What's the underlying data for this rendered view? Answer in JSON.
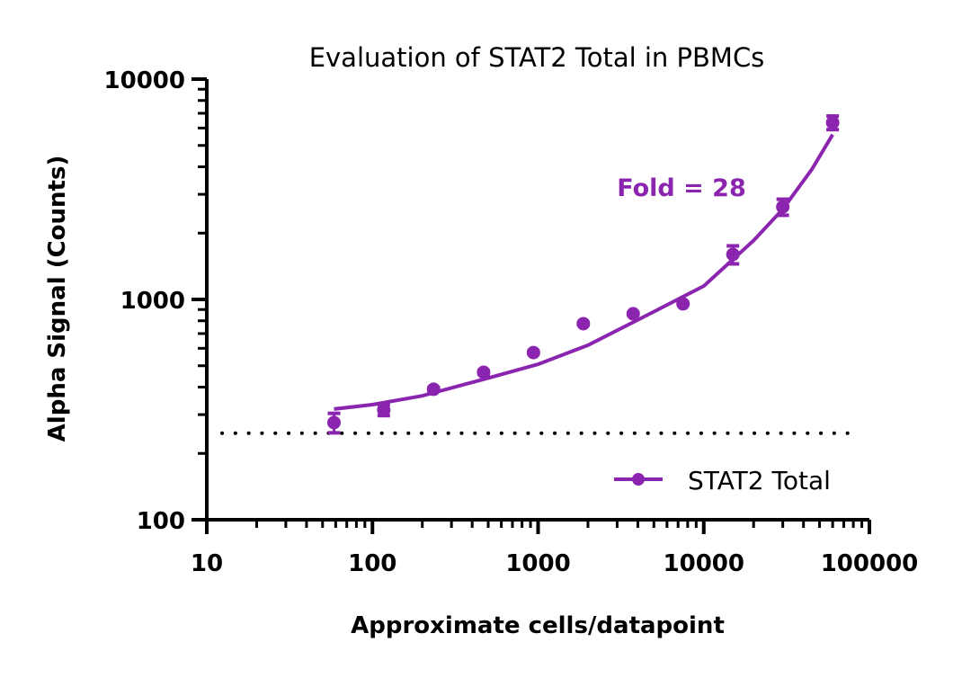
{
  "chart_data": {
    "type": "scatter",
    "title": "Evaluation of STAT2 Total in PBMCs",
    "xlabel": "Approximate cells/datapoint",
    "ylabel": "Alpha Signal (Counts)",
    "xscale": "log",
    "yscale": "log",
    "xlim": [
      10,
      100000
    ],
    "ylim": [
      100,
      10000
    ],
    "xticks": [
      "10",
      "100",
      "1000",
      "10000",
      "100000"
    ],
    "yticks": [
      "100",
      "1000",
      "10000"
    ],
    "grid": false,
    "legend_position": "bottom-right",
    "annotation": "Fold = 28",
    "color": "#8B25B0",
    "baseline": {
      "style": "dotted",
      "y": 247,
      "color": "#000000"
    },
    "series": [
      {
        "name": "STAT2 Total",
        "x": [
          58.6,
          117,
          234,
          469,
          938,
          1875,
          3750,
          7500,
          15000,
          30000,
          60000
        ],
        "y": [
          276,
          315,
          391,
          467,
          574,
          776,
          861,
          955,
          1600,
          2630,
          6350
        ],
        "error": [
          28,
          18,
          8,
          8,
          8,
          8,
          8,
          8,
          150,
          220,
          450
        ],
        "fit": {
          "x": [
            58.6,
            100,
            200,
            500,
            1000,
            2000,
            5000,
            10000,
            20000,
            30000,
            45000,
            60000
          ],
          "y": [
            318,
            333,
            365,
            440,
            508,
            620,
            880,
            1150,
            1850,
            2570,
            3900,
            5600
          ]
        }
      }
    ]
  }
}
